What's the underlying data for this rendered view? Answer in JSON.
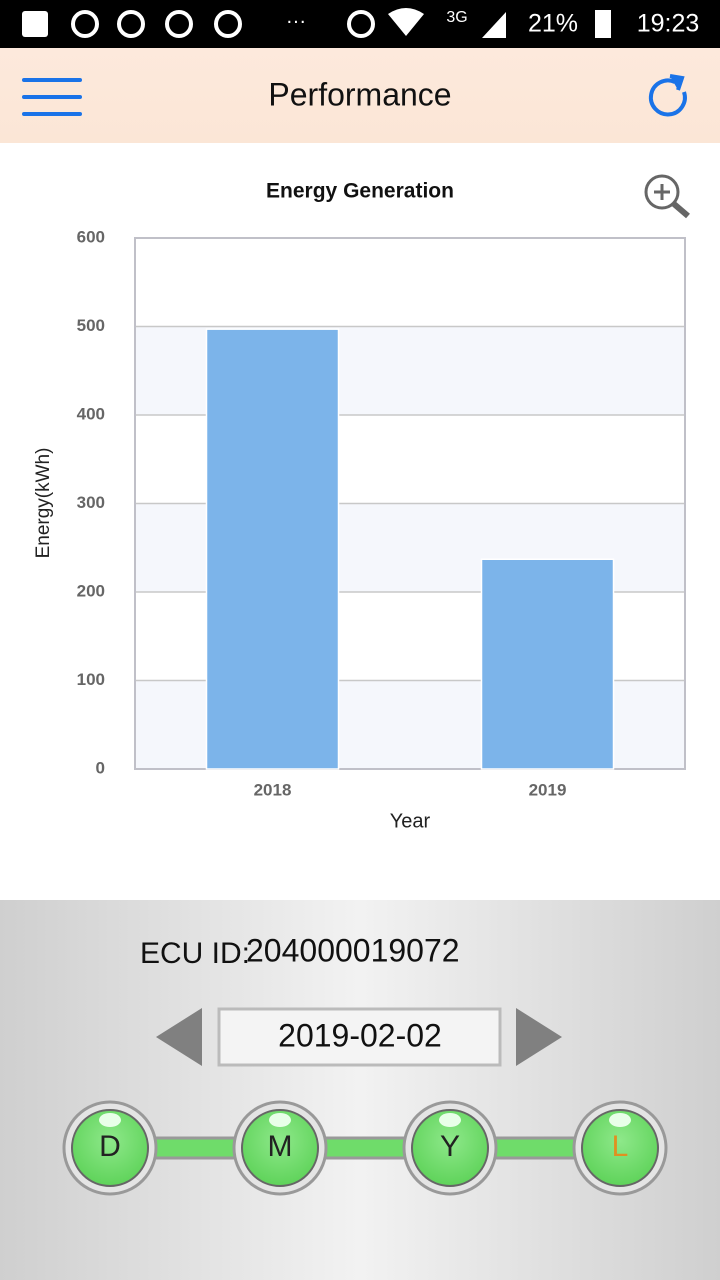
{
  "status_bar": {
    "more": "···",
    "network": "3G",
    "battery": "21%",
    "time": "19:23"
  },
  "header": {
    "title": "Performance"
  },
  "chart_data": {
    "type": "bar",
    "title": "Energy Generation",
    "x_label": "Year",
    "y_label": "Energy(kWh)",
    "categories": [
      "2018",
      "2019"
    ],
    "values": [
      497,
      237
    ],
    "color": "#7cb4ea",
    "ylim": [
      0,
      600
    ],
    "yticks": [
      0,
      100,
      200,
      300,
      400,
      500,
      600
    ],
    "grid": true
  },
  "ecu": {
    "label": "ECU ID:",
    "id": "204000019072"
  },
  "date": "2019-02-02",
  "periods": [
    "D",
    "M",
    "Y",
    "L"
  ]
}
